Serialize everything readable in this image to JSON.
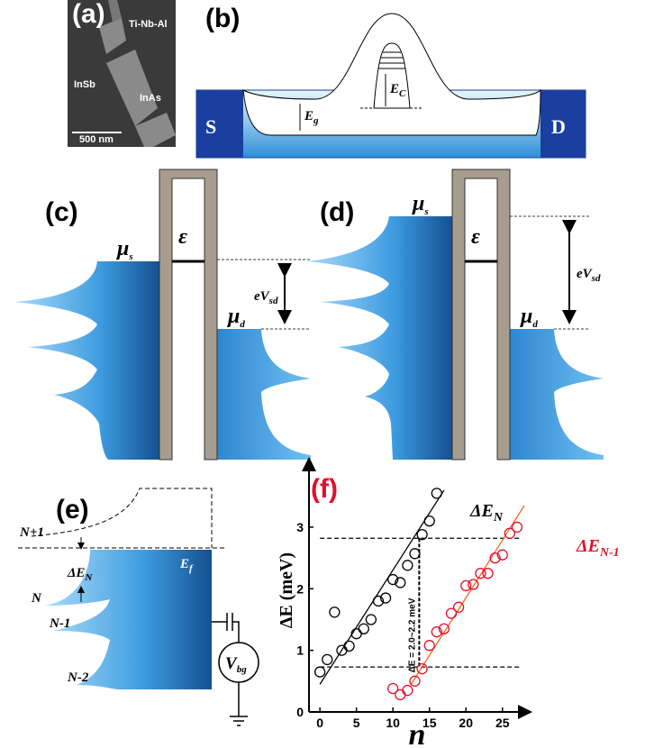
{
  "panel_a": {
    "label": "(a)",
    "texts": [
      "Ti-Nb-Al",
      "InSb",
      "InAs",
      "500 nm"
    ]
  },
  "panel_b": {
    "label": "(b)",
    "source": "S",
    "drain": "D",
    "gap": {
      "main": "E",
      "sub": "g"
    },
    "charging": {
      "main": "E",
      "sub": "C"
    }
  },
  "panel_c": {
    "label": "(c)",
    "mu_s": {
      "main": "μ",
      "sub": "s"
    },
    "level": "ε",
    "bias": {
      "main": "eV",
      "sub": "sd"
    },
    "mu_d": {
      "main": "μ",
      "sub": "d"
    }
  },
  "panel_d": {
    "label": "(d)",
    "mu_s": {
      "main": "μ",
      "sub": "s"
    },
    "level": "ε",
    "bias": {
      "main": "eV",
      "sub": "sd"
    },
    "mu_d": {
      "main": "μ",
      "sub": "d"
    }
  },
  "panel_e": {
    "label": "(e)",
    "levels": [
      "N+1",
      "N",
      "N-1",
      "N-2"
    ],
    "spacing": {
      "main": "ΔE",
      "sub": "N"
    },
    "fermi": {
      "main": "E",
      "sub": "f"
    },
    "gate": {
      "main": "V",
      "sub": "bg"
    }
  },
  "chart_data": {
    "type": "scatter",
    "label": "(f)",
    "xlabel": "n",
    "ylabel": "ΔE (meV)",
    "xlim": [
      -1.5,
      27.5
    ],
    "ylim": [
      0,
      3.95
    ],
    "xticks": [
      0,
      5,
      10,
      15,
      20,
      25
    ],
    "yticks": [
      0,
      1,
      2,
      3
    ],
    "series": [
      {
        "name": {
          "main": "ΔE",
          "sub": "N"
        },
        "color": "#000000",
        "x": [
          0,
          1,
          2,
          3,
          4,
          5,
          6,
          7,
          8,
          9,
          10,
          11,
          12,
          13,
          14,
          15,
          16
        ],
        "values": [
          0.65,
          0.85,
          1.62,
          1.0,
          1.07,
          1.27,
          1.35,
          1.5,
          1.8,
          1.85,
          2.15,
          2.1,
          2.38,
          2.57,
          2.88,
          3.1,
          3.55
        ],
        "fit": {
          "x": [
            0,
            17
          ],
          "values": [
            0.45,
            3.6
          ]
        }
      },
      {
        "name": {
          "main": "ΔE",
          "sub": "N-1"
        },
        "color": "#e0102a",
        "x": [
          10,
          11,
          12,
          13,
          14,
          15,
          16,
          17,
          18,
          19,
          20,
          21,
          22,
          23,
          24,
          25,
          26,
          27
        ],
        "values": [
          0.38,
          0.28,
          0.35,
          0.5,
          0.7,
          1.08,
          1.3,
          1.35,
          1.6,
          1.7,
          2.05,
          2.07,
          2.25,
          2.25,
          2.5,
          2.55,
          2.9,
          3.0
        ],
        "fit": {
          "x": [
            12.5,
            28
          ],
          "values": [
            0.45,
            3.35
          ]
        }
      }
    ],
    "hlines": [
      2.82,
      0.73
    ],
    "vline": 13.6,
    "annotation": "ΔE = 2.0~2.2 meV"
  }
}
